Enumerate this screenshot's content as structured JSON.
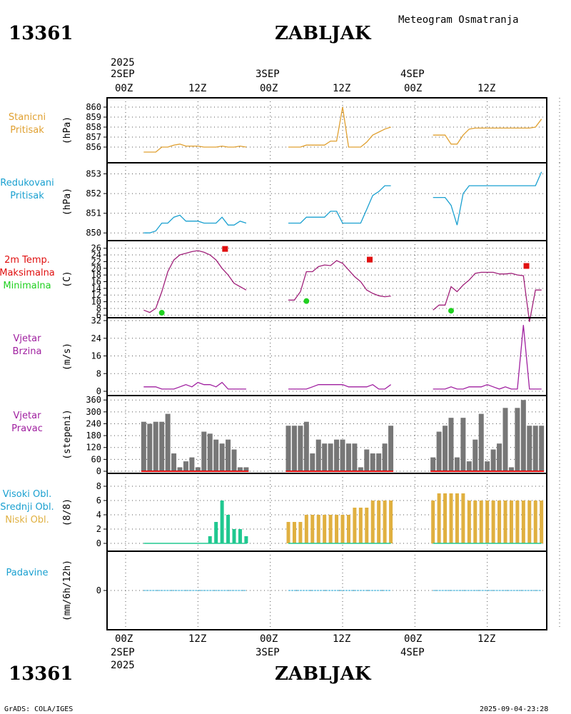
{
  "header": {
    "station_id": "13361",
    "station_name": "ZABLJAK",
    "subtitle": "Meteogram Osmatranja",
    "year": "2025",
    "day_labels": [
      "2SEP",
      "3SEP",
      "4SEP"
    ],
    "hour_labels": [
      "00Z",
      "12Z",
      "00Z",
      "12Z",
      "00Z",
      "12Z"
    ]
  },
  "footer": {
    "station_id": "13361",
    "station_name": "ZABLJAK",
    "credit": "GrADS: COLA/IGES",
    "timestamp": "2025-09-04-23:28",
    "year": "2025",
    "day_labels": [
      "2SEP",
      "3SEP",
      "4SEP"
    ],
    "hour_labels": [
      "00Z",
      "12Z",
      "00Z",
      "12Z",
      "00Z",
      "12Z"
    ]
  },
  "colors": {
    "pressure": "#e0a030",
    "reduced": "#1aa0d0",
    "temp": "#a0207a",
    "max": "#e01010",
    "min": "#20d020",
    "wind": "#a020a0",
    "bars": "#777777",
    "high_cloud": "#1aa0d0",
    "mid_cloud": "#20c890",
    "low_cloud": "#e0b040",
    "precip": "#1aa0d0"
  },
  "chart_data": [
    {
      "id": "p1",
      "type": "line",
      "name": "Stanicni Pritisak",
      "label_lines": [
        "Stanicni",
        "Pritisak"
      ],
      "unit": "(hPa)",
      "ylim": [
        855,
        860.5
      ],
      "yticks": [
        856,
        857,
        858,
        859,
        860
      ],
      "series": [
        {
          "x": [
            3,
            4,
            5,
            6,
            7,
            8,
            9,
            10,
            11,
            12,
            13,
            14,
            15,
            16,
            17,
            18,
            19,
            20
          ],
          "y": [
            855.5,
            855.5,
            855.5,
            856,
            856,
            856.2,
            856.3,
            856.1,
            856.1,
            856.1,
            856,
            856,
            856,
            856.1,
            856,
            856,
            856.1,
            856
          ]
        },
        {
          "x": [
            27,
            28,
            29,
            30,
            31,
            32,
            33,
            34,
            35,
            36,
            37,
            38,
            39,
            40,
            41,
            42,
            43,
            44
          ],
          "y": [
            856,
            856,
            856,
            856.2,
            856.2,
            856.2,
            856.2,
            856.6,
            856.6,
            860,
            856,
            856,
            856,
            856.5,
            857.2,
            857.5,
            857.8,
            858
          ]
        },
        {
          "x": [
            51,
            52,
            53,
            54,
            55,
            56,
            57,
            58,
            59,
            60,
            61,
            62,
            63,
            64,
            65,
            66,
            67,
            68,
            69
          ],
          "y": [
            857.2,
            857.2,
            857.2,
            856.3,
            856.3,
            857.2,
            857.8,
            857.9,
            857.9,
            857.9,
            857.9,
            857.9,
            857.9,
            857.9,
            857.9,
            857.9,
            857.9,
            858,
            858.8
          ]
        }
      ]
    },
    {
      "id": "p2",
      "type": "line",
      "name": "Redukovani Pritisak",
      "label_lines": [
        "Redukovani",
        "Pritisak"
      ],
      "unit": "(hPa)",
      "ylim": [
        849.9,
        853.2
      ],
      "yticks": [
        850,
        851,
        852,
        853
      ],
      "series": [
        {
          "x": [
            3,
            4,
            5,
            6,
            7,
            8,
            9,
            10,
            11,
            12,
            13,
            14,
            15,
            16,
            17,
            18,
            19,
            20
          ],
          "y": [
            850,
            850,
            850.1,
            850.5,
            850.5,
            850.8,
            850.9,
            850.6,
            850.6,
            850.6,
            850.5,
            850.5,
            850.5,
            850.8,
            850.4,
            850.4,
            850.6,
            850.5
          ]
        },
        {
          "x": [
            27,
            28,
            29,
            30,
            31,
            32,
            33,
            34,
            35,
            36,
            37,
            38,
            39,
            40,
            41,
            42,
            43,
            44
          ],
          "y": [
            850.5,
            850.5,
            850.5,
            850.8,
            850.8,
            850.8,
            850.8,
            851.1,
            851.1,
            850.5,
            850.5,
            850.5,
            850.5,
            851.2,
            851.9,
            852.1,
            852.4,
            852.4
          ]
        },
        {
          "x": [
            51,
            52,
            53,
            54,
            55,
            56,
            57,
            58,
            59,
            60,
            61,
            62,
            63,
            64,
            65,
            66,
            67,
            68,
            69
          ],
          "y": [
            851.8,
            851.8,
            851.8,
            851.4,
            850.4,
            852,
            852.4,
            852.4,
            852.4,
            852.4,
            852.4,
            852.4,
            852.4,
            852.4,
            852.4,
            852.4,
            852.4,
            852.4,
            853.1
          ]
        }
      ]
    },
    {
      "id": "p3",
      "type": "line",
      "name": "2m Temp. Maksimalna Minimalna",
      "label_lines": [
        "2m Temp.",
        "Maksimalna",
        "Minimalna"
      ],
      "unit": "(C)",
      "ylim": [
        5,
        27
      ],
      "yticks": [
        6,
        8,
        10,
        12,
        14,
        16,
        18,
        20,
        22,
        24,
        26
      ],
      "series": [
        {
          "x": [
            3,
            4,
            5,
            6,
            7,
            8,
            9,
            10,
            11,
            12,
            13,
            14,
            15,
            16,
            17,
            18,
            19,
            20
          ],
          "y": [
            7.5,
            6.8,
            8,
            13,
            19,
            22.5,
            24,
            24.5,
            25,
            25.3,
            24.8,
            24,
            22.5,
            20,
            18,
            15.5,
            14.5,
            13.5
          ]
        },
        {
          "x": [
            27,
            28,
            29,
            30,
            31,
            32,
            33,
            34,
            35,
            36,
            37,
            38,
            39,
            40,
            41,
            42,
            43,
            44
          ],
          "y": [
            10.5,
            10.5,
            13,
            19,
            19,
            20.5,
            21,
            20.8,
            22.3,
            21.5,
            19.5,
            17.5,
            16,
            13.5,
            12.5,
            11.8,
            11.5,
            11.7
          ]
        },
        {
          "x": [
            51,
            52,
            53,
            54,
            55,
            56,
            57,
            58,
            59,
            60,
            61,
            62,
            63,
            64,
            65,
            66,
            67,
            68,
            69
          ],
          "y": [
            7.5,
            9,
            9,
            14.5,
            13,
            15,
            16.5,
            18.5,
            18.8,
            18.8,
            18.8,
            18.3,
            18.3,
            18.5,
            18,
            17.8,
            4,
            13.5,
            13.5
          ]
        }
      ],
      "maxima": [
        {
          "x": 16.5,
          "y": 25.8
        },
        {
          "x": 40.5,
          "y": 22.6
        },
        {
          "x": 66.5,
          "y": 20.7
        }
      ],
      "minima": [
        {
          "x": 6,
          "y": 6.7
        },
        {
          "x": 30,
          "y": 10.2
        },
        {
          "x": 54,
          "y": 7.3
        }
      ]
    },
    {
      "id": "p4",
      "type": "line",
      "name": "Vjetar Brzina",
      "label_lines": [
        "Vjetar",
        "Brzina"
      ],
      "unit": "(m/s)",
      "ylim": [
        0,
        32
      ],
      "yticks": [
        0,
        8,
        16,
        24,
        32
      ],
      "series": [
        {
          "x": [
            3,
            4,
            5,
            6,
            7,
            8,
            9,
            10,
            11,
            12,
            13,
            14,
            15,
            16,
            17,
            18,
            19,
            20
          ],
          "y": [
            2,
            2,
            2,
            1,
            1,
            1,
            2,
            3,
            2,
            4,
            3,
            3,
            2,
            4,
            1,
            1,
            1,
            1
          ]
        },
        {
          "x": [
            27,
            28,
            29,
            30,
            31,
            32,
            33,
            34,
            35,
            36,
            37,
            38,
            39,
            40,
            41,
            42,
            43,
            44
          ],
          "y": [
            1,
            1,
            1,
            1,
            2,
            3,
            3,
            3,
            3,
            3,
            2,
            2,
            2,
            2,
            3,
            1,
            1,
            3
          ]
        },
        {
          "x": [
            51,
            52,
            53,
            54,
            55,
            56,
            57,
            58,
            59,
            60,
            61,
            62,
            63,
            64,
            65,
            66,
            67,
            68,
            69
          ],
          "y": [
            1,
            1,
            1,
            2,
            1,
            1,
            2,
            2,
            2,
            3,
            2,
            1,
            2,
            1,
            1,
            30,
            1,
            1,
            1
          ]
        }
      ]
    },
    {
      "id": "p5",
      "type": "bar",
      "name": "Vjetar Pravac",
      "label_lines": [
        "Vjetar",
        "Pravac"
      ],
      "unit": "(stepeni)",
      "ylim": [
        0,
        368
      ],
      "yticks": [
        0,
        60,
        120,
        180,
        240,
        300,
        360
      ],
      "series": [
        {
          "x": [
            3,
            4,
            5,
            6,
            7,
            8,
            9,
            10,
            11,
            12,
            13,
            14,
            15,
            16,
            17,
            18,
            19,
            20
          ],
          "y": [
            250,
            240,
            250,
            250,
            290,
            90,
            20,
            50,
            70,
            20,
            200,
            190,
            160,
            140,
            160,
            110,
            20,
            20
          ]
        },
        {
          "x": [
            27,
            28,
            29,
            30,
            31,
            32,
            33,
            34,
            35,
            36,
            37,
            38,
            39,
            40,
            41,
            42,
            43,
            44
          ],
          "y": [
            230,
            230,
            230,
            250,
            90,
            160,
            140,
            140,
            160,
            160,
            140,
            140,
            20,
            110,
            90,
            90,
            140,
            230
          ]
        },
        {
          "x": [
            51,
            52,
            53,
            54,
            55,
            56,
            57,
            58,
            59,
            60,
            61,
            62,
            63,
            64,
            65,
            66,
            67,
            68,
            69
          ],
          "y": [
            70,
            200,
            230,
            270,
            70,
            270,
            50,
            160,
            290,
            50,
            110,
            140,
            320,
            20,
            320,
            360,
            230,
            230,
            230
          ]
        }
      ]
    },
    {
      "id": "p6",
      "type": "bar",
      "name": "Oblacnost",
      "label_lines": [
        "Visoki Obl.",
        "Srednji Obl.",
        "Niski Obl."
      ],
      "unit": "(8/8)",
      "ylim": [
        -0.1,
        8.8
      ],
      "yticks": [
        0,
        2,
        4,
        6,
        8
      ],
      "series": [
        {
          "name": "Srednji Obl.",
          "x": [
            3,
            4,
            5,
            6,
            7,
            8,
            9,
            10,
            11,
            12,
            13,
            14,
            15,
            16,
            17,
            18,
            19,
            20
          ],
          "y": [
            0,
            0,
            0,
            0,
            0,
            0,
            0,
            0,
            0,
            0,
            0,
            1,
            3,
            6,
            4,
            2,
            2,
            1
          ]
        },
        {
          "name": "Niski Obl.",
          "x": [
            27,
            28,
            29,
            30,
            31,
            32,
            33,
            34,
            35,
            36,
            37,
            38,
            39,
            40,
            41,
            42,
            43,
            44
          ],
          "y": [
            3,
            3,
            3,
            4,
            4,
            4,
            4,
            4,
            4,
            4,
            4,
            5,
            5,
            5,
            6,
            6,
            6,
            6
          ]
        },
        {
          "name": "Niski Obl.",
          "x": [
            51,
            52,
            53,
            54,
            55,
            56,
            57,
            58,
            59,
            60,
            61,
            62,
            63,
            64,
            65,
            66,
            67,
            68,
            69
          ],
          "y": [
            6,
            7,
            7,
            7,
            7,
            7,
            6,
            6,
            6,
            6,
            6,
            6,
            6,
            6,
            6,
            6,
            6,
            6,
            6
          ]
        }
      ]
    },
    {
      "id": "p7",
      "type": "line",
      "name": "Padavine",
      "label_lines": [
        "Padavine"
      ],
      "unit": "(mm/6h/12h)",
      "ylim": [
        -1,
        1
      ],
      "yticks": [
        0
      ],
      "series": [
        {
          "x": [
            3,
            20
          ],
          "y": [
            0,
            0
          ]
        },
        {
          "x": [
            27,
            44
          ],
          "y": [
            0,
            0
          ]
        },
        {
          "x": [
            51,
            69
          ],
          "y": [
            0,
            0
          ]
        }
      ]
    }
  ]
}
